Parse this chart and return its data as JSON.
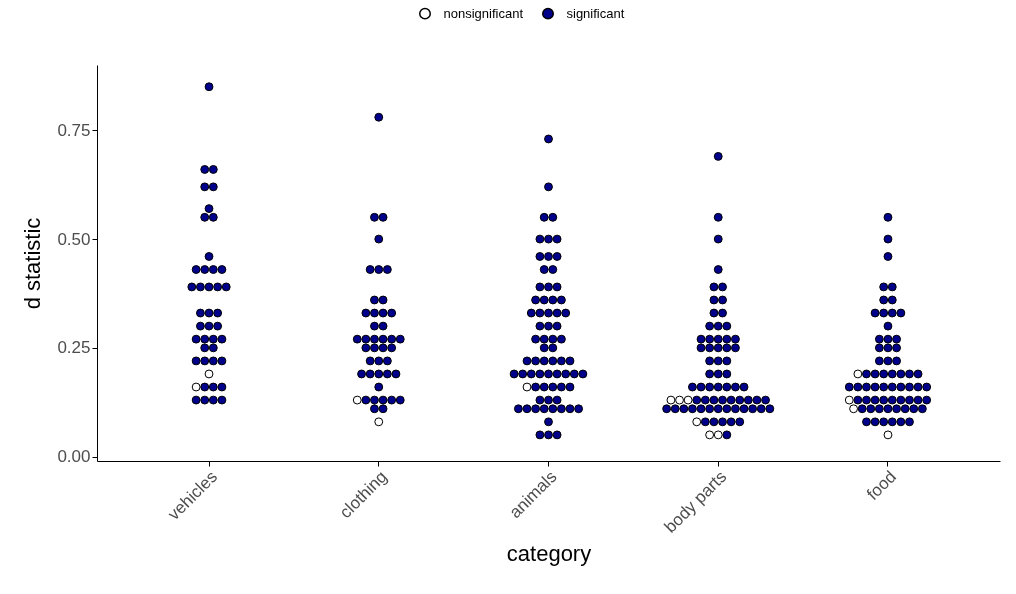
{
  "chart_data": {
    "type": "scatter",
    "xlabel": "category",
    "ylabel": "d statistic",
    "categories": [
      "vehicles",
      "clothing",
      "animals",
      "body parts",
      "food"
    ],
    "ylim": [
      -0.01,
      0.9
    ],
    "yticks": [
      {
        "value": 0,
        "label": "0.00"
      },
      {
        "value": 0.25,
        "label": "0.25"
      },
      {
        "value": 0.5,
        "label": "0.50"
      },
      {
        "value": 0.75,
        "label": "0.75"
      }
    ],
    "legend": "top",
    "marker": "circle",
    "grid": false,
    "series": [
      {
        "name": "nonsignificant",
        "color": "#ffffff",
        "x": [
          "vehicles",
          "vehicles",
          "clothing",
          "clothing",
          "animals",
          "body parts",
          "body parts",
          "body parts",
          "body parts",
          "body parts",
          "body parts",
          "food",
          "food",
          "food",
          "food"
        ],
        "values": [
          0.19,
          0.16,
          0.13,
          0.08,
          0.16,
          0.13,
          0.13,
          0.13,
          0.08,
          0.05,
          0.05,
          0.19,
          0.13,
          0.11,
          0.05
        ]
      },
      {
        "name": "significant",
        "color": "#00008b",
        "x": [
          "vehicles",
          "vehicles",
          "vehicles",
          "vehicles",
          "vehicles",
          "vehicles",
          "vehicles",
          "vehicles",
          "vehicles",
          "vehicles",
          "vehicles",
          "vehicles",
          "vehicles",
          "vehicles",
          "vehicles",
          "vehicles",
          "vehicles",
          "vehicles",
          "vehicles",
          "vehicles",
          "vehicles",
          "vehicles",
          "vehicles",
          "vehicles",
          "vehicles",
          "vehicles",
          "vehicles",
          "vehicles",
          "vehicles",
          "vehicles",
          "vehicles",
          "vehicles",
          "vehicles",
          "vehicles",
          "vehicles",
          "vehicles",
          "vehicles",
          "vehicles",
          "vehicles",
          "vehicles",
          "vehicles",
          "clothing",
          "clothing",
          "clothing",
          "clothing",
          "clothing",
          "clothing",
          "clothing",
          "clothing",
          "clothing",
          "clothing",
          "clothing",
          "clothing",
          "clothing",
          "clothing",
          "clothing",
          "clothing",
          "clothing",
          "clothing",
          "clothing",
          "clothing",
          "clothing",
          "clothing",
          "clothing",
          "clothing",
          "clothing",
          "clothing",
          "clothing",
          "clothing",
          "clothing",
          "clothing",
          "clothing",
          "clothing",
          "clothing",
          "clothing",
          "clothing",
          "clothing",
          "clothing",
          "clothing",
          "clothing",
          "clothing",
          "clothing",
          "animals",
          "animals",
          "animals",
          "animals",
          "animals",
          "animals",
          "animals",
          "animals",
          "animals",
          "animals",
          "animals",
          "animals",
          "animals",
          "animals",
          "animals",
          "animals",
          "animals",
          "animals",
          "animals",
          "animals",
          "animals",
          "animals",
          "animals",
          "animals",
          "animals",
          "animals",
          "animals",
          "animals",
          "animals",
          "animals",
          "animals",
          "animals",
          "animals",
          "animals",
          "animals",
          "animals",
          "animals",
          "animals",
          "animals",
          "animals",
          "animals",
          "animals",
          "animals",
          "animals",
          "animals",
          "animals",
          "animals",
          "animals",
          "animals",
          "animals",
          "animals",
          "animals",
          "animals",
          "animals",
          "animals",
          "animals",
          "animals",
          "animals",
          "animals",
          "animals",
          "animals",
          "animals",
          "animals",
          "animals",
          "animals",
          "animals",
          "animals",
          "animals",
          "body parts",
          "body parts",
          "body parts",
          "body parts",
          "body parts",
          "body parts",
          "body parts",
          "body parts",
          "body parts",
          "body parts",
          "body parts",
          "body parts",
          "body parts",
          "body parts",
          "body parts",
          "body parts",
          "body parts",
          "body parts",
          "body parts",
          "body parts",
          "body parts",
          "body parts",
          "body parts",
          "body parts",
          "body parts",
          "body parts",
          "body parts",
          "body parts",
          "body parts",
          "body parts",
          "body parts",
          "body parts",
          "body parts",
          "body parts",
          "body parts",
          "body parts",
          "body parts",
          "body parts",
          "body parts",
          "body parts",
          "body parts",
          "body parts",
          "body parts",
          "body parts",
          "body parts",
          "body parts",
          "body parts",
          "body parts",
          "body parts",
          "body parts",
          "body parts",
          "body parts",
          "body parts",
          "body parts",
          "body parts",
          "body parts",
          "body parts",
          "body parts",
          "body parts",
          "body parts",
          "body parts",
          "body parts",
          "body parts",
          "body parts",
          "food",
          "food",
          "food",
          "food",
          "food",
          "food",
          "food",
          "food",
          "food",
          "food",
          "food",
          "food",
          "food",
          "food",
          "food",
          "food",
          "food",
          "food",
          "food",
          "food",
          "food",
          "food",
          "food",
          "food",
          "food",
          "food",
          "food",
          "food",
          "food",
          "food",
          "food",
          "food",
          "food",
          "food",
          "food",
          "food",
          "food",
          "food",
          "food",
          "food",
          "food",
          "food",
          "food",
          "food",
          "food",
          "food",
          "food",
          "food",
          "food",
          "food",
          "food",
          "food",
          "food",
          "food",
          "food",
          "food",
          "food",
          "food",
          "food",
          "food",
          "food"
        ],
        "values": [
          0.85,
          0.66,
          0.66,
          0.62,
          0.62,
          0.57,
          0.55,
          0.55,
          0.46,
          0.43,
          0.43,
          0.43,
          0.43,
          0.39,
          0.39,
          0.39,
          0.39,
          0.39,
          0.33,
          0.33,
          0.33,
          0.3,
          0.3,
          0.3,
          0.27,
          0.27,
          0.27,
          0.27,
          0.25,
          0.25,
          0.22,
          0.22,
          0.22,
          0.22,
          0.16,
          0.16,
          0.16,
          0.13,
          0.13,
          0.13,
          0.13,
          0.78,
          0.55,
          0.55,
          0.5,
          0.43,
          0.43,
          0.43,
          0.36,
          0.36,
          0.33,
          0.33,
          0.33,
          0.33,
          0.3,
          0.3,
          0.27,
          0.27,
          0.27,
          0.27,
          0.27,
          0.27,
          0.25,
          0.25,
          0.25,
          0.25,
          0.22,
          0.22,
          0.22,
          0.19,
          0.19,
          0.19,
          0.19,
          0.19,
          0.16,
          0.13,
          0.13,
          0.13,
          0.13,
          0.13,
          0.11,
          0.11,
          0.73,
          0.62,
          0.55,
          0.55,
          0.5,
          0.5,
          0.5,
          0.46,
          0.46,
          0.46,
          0.43,
          0.43,
          0.39,
          0.39,
          0.39,
          0.36,
          0.36,
          0.36,
          0.36,
          0.33,
          0.33,
          0.33,
          0.33,
          0.33,
          0.3,
          0.3,
          0.3,
          0.27,
          0.27,
          0.27,
          0.27,
          0.25,
          0.25,
          0.22,
          0.22,
          0.22,
          0.22,
          0.22,
          0.22,
          0.19,
          0.19,
          0.19,
          0.19,
          0.19,
          0.19,
          0.19,
          0.19,
          0.19,
          0.16,
          0.16,
          0.16,
          0.16,
          0.16,
          0.13,
          0.13,
          0.13,
          0.11,
          0.11,
          0.11,
          0.11,
          0.11,
          0.11,
          0.11,
          0.11,
          0.08,
          0.05,
          0.05,
          0.05,
          0.69,
          0.55,
          0.5,
          0.43,
          0.39,
          0.39,
          0.36,
          0.36,
          0.33,
          0.33,
          0.3,
          0.3,
          0.3,
          0.27,
          0.27,
          0.27,
          0.27,
          0.27,
          0.25,
          0.25,
          0.25,
          0.25,
          0.25,
          0.22,
          0.22,
          0.22,
          0.19,
          0.19,
          0.19,
          0.16,
          0.16,
          0.16,
          0.16,
          0.16,
          0.16,
          0.16,
          0.13,
          0.13,
          0.13,
          0.13,
          0.13,
          0.13,
          0.13,
          0.13,
          0.13,
          0.11,
          0.11,
          0.11,
          0.11,
          0.11,
          0.11,
          0.11,
          0.11,
          0.11,
          0.11,
          0.11,
          0.11,
          0.11,
          0.08,
          0.08,
          0.08,
          0.08,
          0.08,
          0.05,
          0.55,
          0.5,
          0.46,
          0.39,
          0.39,
          0.36,
          0.36,
          0.33,
          0.33,
          0.33,
          0.33,
          0.3,
          0.27,
          0.27,
          0.27,
          0.25,
          0.25,
          0.25,
          0.22,
          0.22,
          0.22,
          0.19,
          0.19,
          0.19,
          0.19,
          0.19,
          0.19,
          0.19,
          0.16,
          0.16,
          0.16,
          0.16,
          0.16,
          0.16,
          0.16,
          0.16,
          0.16,
          0.16,
          0.13,
          0.13,
          0.13,
          0.13,
          0.13,
          0.13,
          0.13,
          0.13,
          0.13,
          0.11,
          0.11,
          0.11,
          0.11,
          0.11,
          0.11,
          0.11,
          0.11,
          0.08,
          0.08,
          0.08,
          0.08,
          0.08,
          0.08
        ]
      }
    ]
  }
}
